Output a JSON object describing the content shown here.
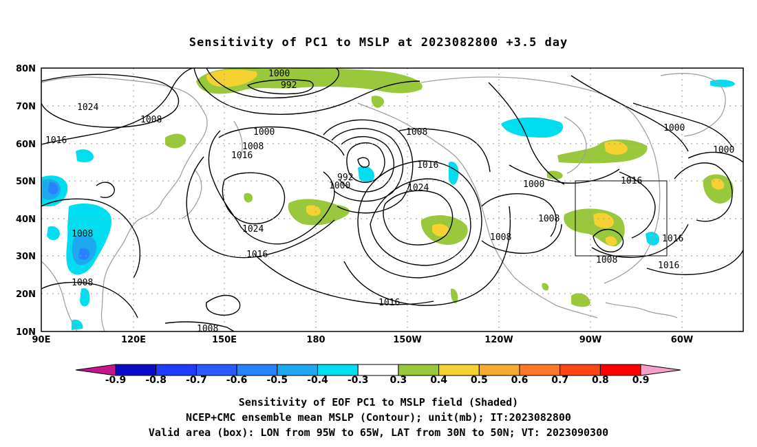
{
  "title": "Sensitivity of PC1 to MSLP at 2023082800 +3.5 day",
  "map": {
    "lat_ticks": [
      "80N",
      "70N",
      "60N",
      "50N",
      "40N",
      "30N",
      "20N",
      "10N"
    ],
    "lon_ticks": [
      "90E",
      "120E",
      "150E",
      "180",
      "150W",
      "120W",
      "90W",
      "60W"
    ],
    "box": {
      "lon_min": "95W",
      "lon_max": "65W",
      "lat_min": "30N",
      "lat_max": "50N"
    }
  },
  "contour_labels": [
    {
      "id": "c1",
      "text": "1000"
    },
    {
      "id": "c2",
      "text": "992"
    },
    {
      "id": "c3",
      "text": "1024"
    },
    {
      "id": "c4",
      "text": "1008"
    },
    {
      "id": "c5",
      "text": "1016"
    },
    {
      "id": "c6",
      "text": "1000"
    },
    {
      "id": "c7",
      "text": "1008"
    },
    {
      "id": "c8",
      "text": "1016"
    },
    {
      "id": "c9",
      "text": "992"
    },
    {
      "id": "c10",
      "text": "1000"
    },
    {
      "id": "c11",
      "text": "1008"
    },
    {
      "id": "c12",
      "text": "1016"
    },
    {
      "id": "c13",
      "text": "1024"
    },
    {
      "id": "c14",
      "text": "1024"
    },
    {
      "id": "c15",
      "text": "1016"
    },
    {
      "id": "c16",
      "text": "1008"
    },
    {
      "id": "c17",
      "text": "1008"
    },
    {
      "id": "c18",
      "text": "1016"
    },
    {
      "id": "c19",
      "text": "1008"
    },
    {
      "id": "c20",
      "text": "1000"
    },
    {
      "id": "c21",
      "text": "1016"
    },
    {
      "id": "c22",
      "text": "1008"
    },
    {
      "id": "c23",
      "text": "1008"
    },
    {
      "id": "c24",
      "text": "1008"
    },
    {
      "id": "c25",
      "text": "1016"
    },
    {
      "id": "c26",
      "text": "1000"
    },
    {
      "id": "c27",
      "text": "1000"
    },
    {
      "id": "c28",
      "text": "1016"
    }
  ],
  "colorbar": {
    "labels": [
      "-0.9",
      "-0.8",
      "-0.7",
      "-0.6",
      "-0.5",
      "-0.4",
      "-0.3",
      "0.3",
      "0.4",
      "0.5",
      "0.6",
      "0.7",
      "0.8",
      "0.9"
    ],
    "colors": [
      "#0a0ac8",
      "#1e3cff",
      "#285aff",
      "#2882ff",
      "#1ea8f0",
      "#00dcf0",
      "#ffffff",
      "#9ac83c",
      "#f5d232",
      "#f5aa32",
      "#ff7828",
      "#ff4614",
      "#ff0000"
    ],
    "low_arrow_color": "#c8148c",
    "high_arrow_color": "#f5a0c8"
  },
  "captions": {
    "line1": "Sensitivity of EOF PC1 to MSLP field (Shaded)",
    "line2": "NCEP+CMC ensemble mean MSLP (Contour); unit(mb); IT:2023082800",
    "line3": "Valid area (box): LON from 95W to 65W, LAT from 30N to 50N; VT: 2023090300"
  }
}
